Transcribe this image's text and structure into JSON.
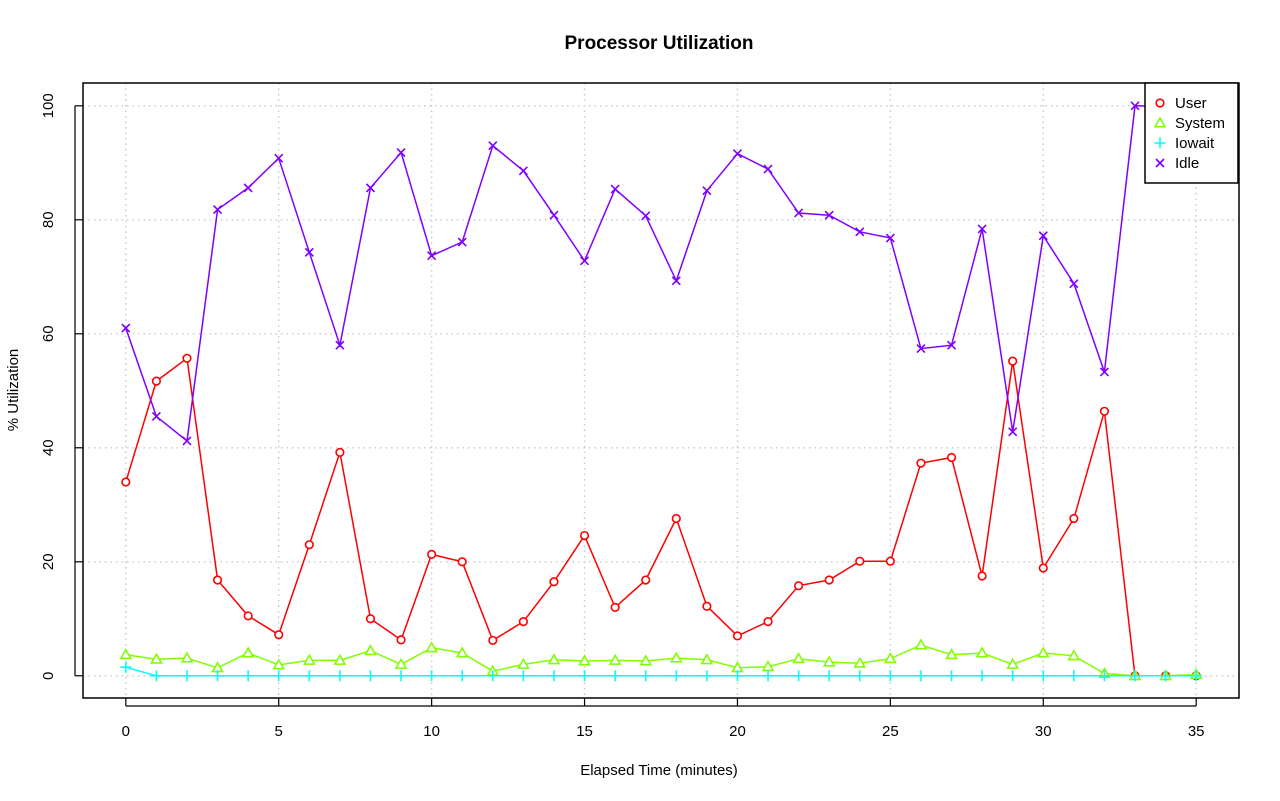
{
  "chart_data": {
    "type": "line",
    "title": "Processor Utilization",
    "xlabel": "Elapsed Time (minutes)",
    "ylabel": "% Utilization",
    "xlim": [
      -1.4,
      36.4
    ],
    "ylim": [
      -3.9,
      104
    ],
    "x_ticks": [
      0,
      5,
      10,
      15,
      20,
      25,
      30,
      35
    ],
    "y_ticks": [
      0,
      20,
      40,
      60,
      80,
      100
    ],
    "grid": true,
    "legend_position": "top-right",
    "x": [
      0,
      1,
      2,
      3,
      4,
      5,
      6,
      7,
      8,
      9,
      10,
      11,
      12,
      13,
      14,
      15,
      16,
      17,
      18,
      19,
      20,
      21,
      22,
      23,
      24,
      25,
      26,
      27,
      28,
      29,
      30,
      31,
      32,
      33,
      34,
      35
    ],
    "series": [
      {
        "name": "User",
        "color": "#ff0000",
        "marker": "circle",
        "values": [
          34,
          51.7,
          55.7,
          16.8,
          10.5,
          7.2,
          23,
          39.2,
          10,
          6.3,
          21.3,
          20,
          6.2,
          9.5,
          16.5,
          24.6,
          12,
          16.8,
          27.6,
          12.2,
          7,
          9.5,
          15.8,
          16.8,
          20.1,
          20.1,
          37.3,
          38.3,
          17.5,
          55.2,
          18.9,
          27.6,
          46.4,
          0,
          0,
          0
        ]
      },
      {
        "name": "System",
        "color": "#80ff00",
        "marker": "triangle",
        "values": [
          3.7,
          2.9,
          3.1,
          1.4,
          4,
          1.9,
          2.7,
          2.7,
          4.4,
          2,
          4.9,
          4,
          0.8,
          2,
          2.8,
          2.6,
          2.7,
          2.6,
          3.1,
          2.8,
          1.4,
          1.6,
          3,
          2.4,
          2.2,
          3,
          5.4,
          3.7,
          4,
          2,
          4,
          3.5,
          0.4,
          0,
          0,
          0.2
        ]
      },
      {
        "name": "Iowait",
        "color": "#00ffff",
        "marker": "plus",
        "values": [
          1.5,
          0,
          0,
          0,
          0,
          0,
          0,
          0,
          0,
          0,
          0,
          0,
          0,
          0,
          0,
          0,
          0,
          0,
          0,
          0,
          0,
          0,
          0,
          0,
          0,
          0,
          0,
          0,
          0,
          0,
          0,
          0,
          0,
          0,
          0,
          0
        ]
      },
      {
        "name": "Idle",
        "color": "#8000ff",
        "marker": "cross",
        "values": [
          61,
          45.5,
          41.2,
          81.8,
          85.6,
          90.8,
          74.3,
          58,
          85.6,
          91.8,
          73.7,
          76.1,
          93,
          88.6,
          80.8,
          72.8,
          85.4,
          80.7,
          69.3,
          85.1,
          91.6,
          88.9,
          81.2,
          80.8,
          77.9,
          76.8,
          57.4,
          58,
          78.4,
          42.8,
          77.2,
          68.8,
          53.3,
          100,
          99.9,
          99.8
        ]
      }
    ]
  }
}
